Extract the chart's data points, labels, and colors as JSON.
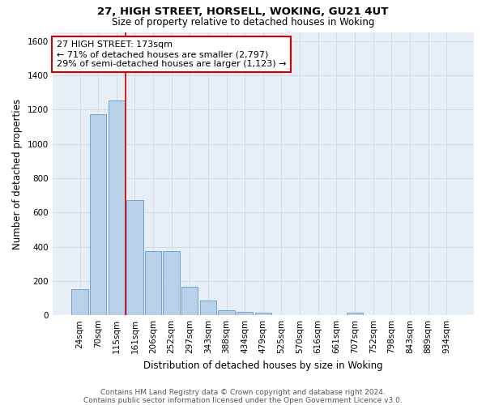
{
  "title1": "27, HIGH STREET, HORSELL, WOKING, GU21 4UT",
  "title2": "Size of property relative to detached houses in Woking",
  "xlabel": "Distribution of detached houses by size in Woking",
  "ylabel": "Number of detached properties",
  "categories": [
    "24sqm",
    "70sqm",
    "115sqm",
    "161sqm",
    "206sqm",
    "252sqm",
    "297sqm",
    "343sqm",
    "388sqm",
    "434sqm",
    "479sqm",
    "525sqm",
    "570sqm",
    "616sqm",
    "661sqm",
    "707sqm",
    "752sqm",
    "798sqm",
    "843sqm",
    "889sqm",
    "934sqm"
  ],
  "values": [
    150,
    1175,
    1255,
    670,
    375,
    375,
    165,
    85,
    30,
    20,
    17,
    0,
    0,
    0,
    0,
    15,
    0,
    0,
    0,
    0,
    0
  ],
  "bar_color": "#b8d0e8",
  "bar_edge_color": "#6699cc",
  "vline_color": "#cc0000",
  "vline_x": 2.5,
  "annotation_line1": "27 HIGH STREET: 173sqm",
  "annotation_line2": "← 71% of detached houses are smaller (2,797)",
  "annotation_line3": "29% of semi-detached houses are larger (1,123) →",
  "annotation_box_facecolor": "white",
  "annotation_box_edgecolor": "#cc0000",
  "ylim_max": 1650,
  "yticks": [
    0,
    200,
    400,
    600,
    800,
    1000,
    1200,
    1400,
    1600
  ],
  "grid_color": "#d0dde8",
  "plot_bg_color": "#e8eef5",
  "footer_line1": "Contains HM Land Registry data © Crown copyright and database right 2024.",
  "footer_line2": "Contains public sector information licensed under the Open Government Licence v3.0."
}
